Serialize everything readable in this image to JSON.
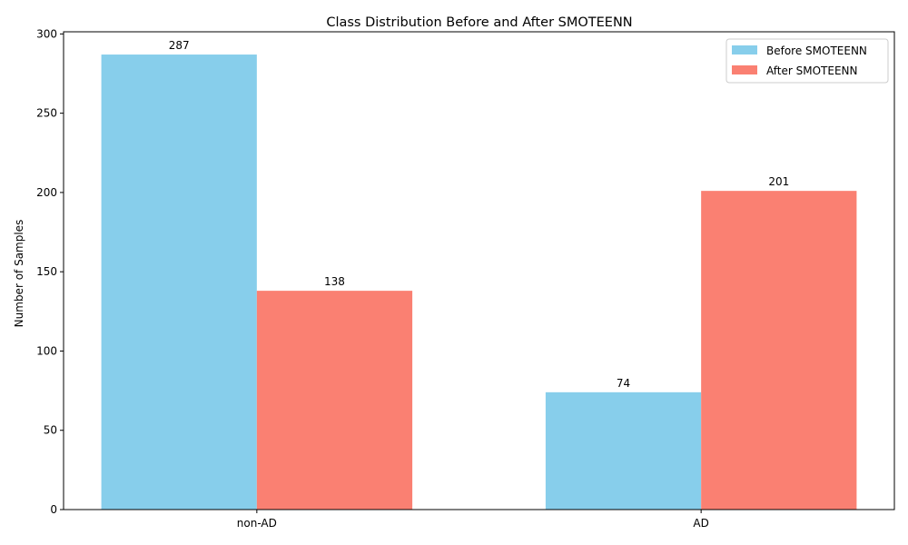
{
  "chart_data": {
    "type": "bar",
    "title": "Class Distribution Before and After SMOTEENN",
    "xlabel": "",
    "ylabel": "Number of Samples",
    "categories": [
      "non-AD",
      "AD"
    ],
    "series": [
      {
        "name": "Before SMOTEENN",
        "values": [
          287,
          74
        ],
        "color": "#87ceeb"
      },
      {
        "name": "After SMOTEENN",
        "values": [
          138,
          201
        ],
        "color": "#fa8072"
      }
    ],
    "ylim": [
      0,
      301.35
    ],
    "yticks": [
      0,
      50,
      100,
      150,
      200,
      250,
      300
    ],
    "grid": false,
    "legend_position": "top-right"
  }
}
